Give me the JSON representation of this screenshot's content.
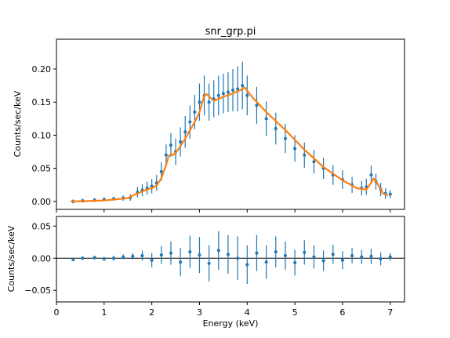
{
  "chart_data": [
    {
      "panel": "top",
      "type": "scatter",
      "title": "snr_grp.pi",
      "ylabel": "Counts/sec/keV",
      "xlim": [
        0,
        7.3
      ],
      "ylim": [
        -0.012,
        0.245
      ],
      "x_ticks": [
        0,
        1,
        2,
        3,
        4,
        5,
        6,
        7
      ],
      "y_ticks": [
        0.0,
        0.05,
        0.1,
        0.15,
        0.2
      ],
      "y_tick_labels": [
        "0.00",
        "0.05",
        "0.10",
        "0.15",
        "0.20"
      ],
      "series": [
        {
          "kind": "data-with-errorbars",
          "color": "#1f77b4",
          "x": [
            0.35,
            0.55,
            0.8,
            1.0,
            1.2,
            1.4,
            1.55,
            1.7,
            1.8,
            1.9,
            2.0,
            2.1,
            2.2,
            2.3,
            2.4,
            2.5,
            2.6,
            2.7,
            2.8,
            2.9,
            3.0,
            3.1,
            3.2,
            3.3,
            3.4,
            3.5,
            3.6,
            3.7,
            3.8,
            3.9,
            4.0,
            4.2,
            4.4,
            4.6,
            4.8,
            5.0,
            5.2,
            5.4,
            5.6,
            5.8,
            6.0,
            6.2,
            6.4,
            6.5,
            6.6,
            6.7,
            6.8,
            6.9,
            7.0
          ],
          "y": [
            0.0,
            0.001,
            0.002,
            0.003,
            0.004,
            0.005,
            0.006,
            0.014,
            0.017,
            0.02,
            0.023,
            0.028,
            0.045,
            0.07,
            0.085,
            0.075,
            0.09,
            0.105,
            0.12,
            0.135,
            0.15,
            0.16,
            0.15,
            0.155,
            0.16,
            0.163,
            0.165,
            0.168,
            0.17,
            0.175,
            0.16,
            0.145,
            0.125,
            0.11,
            0.095,
            0.08,
            0.07,
            0.06,
            0.05,
            0.04,
            0.033,
            0.025,
            0.02,
            0.022,
            0.04,
            0.03,
            0.018,
            0.012,
            0.011
          ],
          "yerr": [
            0.003,
            0.003,
            0.003,
            0.003,
            0.003,
            0.004,
            0.005,
            0.008,
            0.009,
            0.01,
            0.011,
            0.012,
            0.014,
            0.016,
            0.018,
            0.02,
            0.022,
            0.024,
            0.025,
            0.026,
            0.028,
            0.03,
            0.028,
            0.028,
            0.03,
            0.03,
            0.03,
            0.032,
            0.034,
            0.036,
            0.03,
            0.028,
            0.026,
            0.024,
            0.022,
            0.02,
            0.019,
            0.018,
            0.016,
            0.015,
            0.014,
            0.012,
            0.011,
            0.012,
            0.014,
            0.012,
            0.01,
            0.008,
            0.006
          ]
        },
        {
          "kind": "model",
          "color": "#ff7f0e",
          "x": [
            0.3,
            0.6,
            1.0,
            1.5,
            1.6,
            1.7,
            1.8,
            1.9,
            2.0,
            2.1,
            2.2,
            2.3,
            2.35,
            2.4,
            2.45,
            2.55,
            2.7,
            2.9,
            3.0,
            3.1,
            3.15,
            3.3,
            3.5,
            3.7,
            3.85,
            3.95,
            4.1,
            4.4,
            4.8,
            5.2,
            5.6,
            6.0,
            6.3,
            6.5,
            6.6,
            6.65,
            6.75,
            6.85,
            6.95
          ],
          "y": [
            0.0,
            0.0004,
            0.0015,
            0.005,
            0.009,
            0.012,
            0.015,
            0.018,
            0.02,
            0.024,
            0.035,
            0.055,
            0.068,
            0.072,
            0.07,
            0.078,
            0.095,
            0.12,
            0.135,
            0.16,
            0.162,
            0.152,
            0.158,
            0.163,
            0.168,
            0.172,
            0.158,
            0.135,
            0.108,
            0.078,
            0.052,
            0.032,
            0.02,
            0.018,
            0.028,
            0.035,
            0.025,
            0.012,
            0.009
          ]
        }
      ]
    },
    {
      "panel": "bottom",
      "type": "scatter",
      "xlabel": "Energy (keV)",
      "ylabel": "Counts/sec/keV",
      "xlim": [
        0,
        7.3
      ],
      "ylim": [
        -0.068,
        0.065
      ],
      "x_ticks": [
        0,
        1,
        2,
        3,
        4,
        5,
        6,
        7
      ],
      "x_tick_labels": [
        "0",
        "1",
        "2",
        "3",
        "4",
        "5",
        "6",
        "7"
      ],
      "y_ticks": [
        -0.05,
        0.0,
        0.05
      ],
      "y_tick_labels": [
        "−0.05",
        "0.00",
        "0.05"
      ],
      "reference_line": 0.0,
      "series": [
        {
          "kind": "residuals-with-errorbars",
          "color": "#1f77b4",
          "x": [
            0.35,
            0.55,
            0.8,
            1.0,
            1.2,
            1.4,
            1.6,
            1.8,
            2.0,
            2.2,
            2.4,
            2.6,
            2.8,
            3.0,
            3.2,
            3.4,
            3.6,
            3.8,
            4.0,
            4.2,
            4.4,
            4.6,
            4.8,
            5.0,
            5.2,
            5.4,
            5.6,
            5.8,
            6.0,
            6.2,
            6.4,
            6.6,
            6.8,
            7.0
          ],
          "y": [
            -0.002,
            0.0,
            0.001,
            -0.001,
            0.0,
            0.002,
            0.003,
            0.004,
            -0.003,
            0.005,
            0.008,
            -0.006,
            0.01,
            0.005,
            -0.008,
            0.012,
            0.006,
            0.0,
            -0.01,
            0.008,
            -0.006,
            0.01,
            0.004,
            -0.007,
            0.009,
            0.002,
            -0.004,
            0.006,
            -0.003,
            0.004,
            0.002,
            0.003,
            -0.001,
            0.002
          ],
          "yerr": [
            0.003,
            0.003,
            0.003,
            0.003,
            0.004,
            0.004,
            0.005,
            0.008,
            0.011,
            0.014,
            0.018,
            0.022,
            0.025,
            0.028,
            0.028,
            0.03,
            0.03,
            0.034,
            0.03,
            0.028,
            0.026,
            0.024,
            0.022,
            0.02,
            0.019,
            0.018,
            0.016,
            0.015,
            0.014,
            0.012,
            0.011,
            0.012,
            0.01,
            0.006
          ]
        }
      ]
    }
  ]
}
